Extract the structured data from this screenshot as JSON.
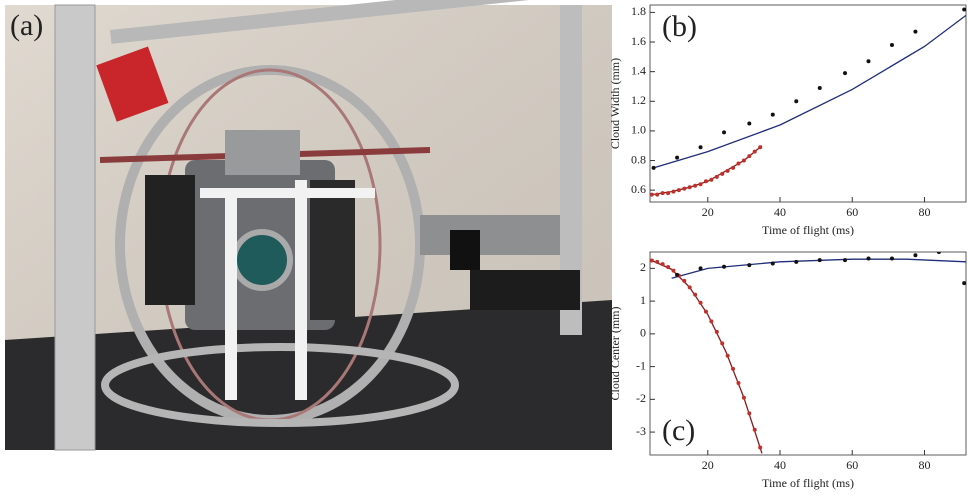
{
  "photo": {
    "label": "(a)"
  },
  "chart_data": [
    {
      "type": "scatter",
      "label": "(b)",
      "x_label": "Time of flight  (ms)",
      "y_label": "Cloud Width (mm)",
      "xlim": [
        4,
        91.5
      ],
      "xticks": [
        20,
        40,
        60,
        80
      ],
      "ylim": [
        0.52,
        1.85
      ],
      "yticks": [
        0.6,
        0.8,
        {
          "value": 1,
          "label": "1.0"
        },
        1.2,
        1.4,
        1.6,
        1.8
      ],
      "series": [
        {
          "style": "line",
          "color": "#1f2d7a",
          "x": [
            5,
            20,
            40,
            60,
            80,
            91.5
          ],
          "values": [
            0.75,
            0.86,
            1.04,
            1.28,
            1.57,
            1.78
          ]
        },
        {
          "style": "line",
          "color": "#8b1a1a",
          "x": [
            4.5,
            10,
            15,
            20,
            25,
            30,
            35
          ],
          "values": [
            0.57,
            0.59,
            0.62,
            0.66,
            0.73,
            0.8,
            0.9
          ]
        },
        {
          "style": "points",
          "color": "#c0302a",
          "x": [
            4.5,
            6,
            7.5,
            9,
            10.5,
            12,
            13.5,
            15,
            16.5,
            18,
            19.5,
            21,
            22.5,
            24,
            25.5,
            27,
            28.5,
            30,
            31.5,
            33,
            34.5
          ],
          "values": [
            0.57,
            0.57,
            0.58,
            0.58,
            0.59,
            0.6,
            0.61,
            0.62,
            0.63,
            0.64,
            0.66,
            0.67,
            0.69,
            0.71,
            0.73,
            0.75,
            0.78,
            0.8,
            0.83,
            0.86,
            0.89
          ]
        },
        {
          "style": "points",
          "color": "#111111",
          "x": [
            5,
            11.5,
            18,
            24.5,
            31.5,
            38,
            44.5,
            51,
            58,
            64.5,
            71,
            77.5,
            91
          ],
          "values": [
            0.75,
            0.82,
            0.89,
            0.99,
            1.05,
            1.11,
            1.2,
            1.29,
            1.39,
            1.47,
            1.58,
            1.67,
            1.82
          ]
        }
      ]
    },
    {
      "type": "scatter",
      "label": "(c)",
      "x_label": "Time of flight  (ms)",
      "y_label": "Cloud Center (mm)",
      "xlim": [
        4,
        91.5
      ],
      "xticks": [
        20,
        40,
        60,
        80
      ],
      "ylim": [
        -3.7,
        2.5
      ],
      "yticks": [
        -3,
        -2,
        -1,
        0,
        1,
        2
      ],
      "series": [
        {
          "style": "line",
          "color": "#1f2d7a",
          "x": [
            10,
            20,
            40,
            60,
            75,
            91.5
          ],
          "values": [
            1.7,
            2.0,
            2.2,
            2.28,
            2.28,
            2.2
          ]
        },
        {
          "style": "line",
          "color": "#8b1a1a",
          "x": [
            4.5,
            10,
            15,
            20,
            25,
            30,
            35
          ],
          "values": [
            2.24,
            1.97,
            1.42,
            0.59,
            -0.54,
            -1.95,
            -3.65
          ]
        },
        {
          "style": "points",
          "color": "#c0302a",
          "x": [
            4.5,
            6,
            7.5,
            9,
            10.5,
            12,
            13.5,
            15,
            16.5,
            18,
            19.5,
            21,
            22.5,
            24,
            25.5,
            27,
            28.5,
            30,
            31.5,
            33,
            34.5
          ],
          "values": [
            2.24,
            2.2,
            2.13,
            2.04,
            1.93,
            1.78,
            1.62,
            1.42,
            1.2,
            0.95,
            0.68,
            0.38,
            0.06,
            -0.29,
            -0.67,
            -1.07,
            -1.5,
            -1.95,
            -2.43,
            -2.93,
            -3.47
          ]
        },
        {
          "style": "points",
          "color": "#111111",
          "x": [
            11.5,
            18,
            24.5,
            31.5,
            38,
            44.5,
            51,
            58,
            64.5,
            71,
            77.5,
            84,
            91
          ],
          "values": [
            1.8,
            2.0,
            2.05,
            2.1,
            2.15,
            2.2,
            2.25,
            2.25,
            2.3,
            2.3,
            2.4,
            2.5,
            1.55
          ]
        }
      ]
    }
  ]
}
